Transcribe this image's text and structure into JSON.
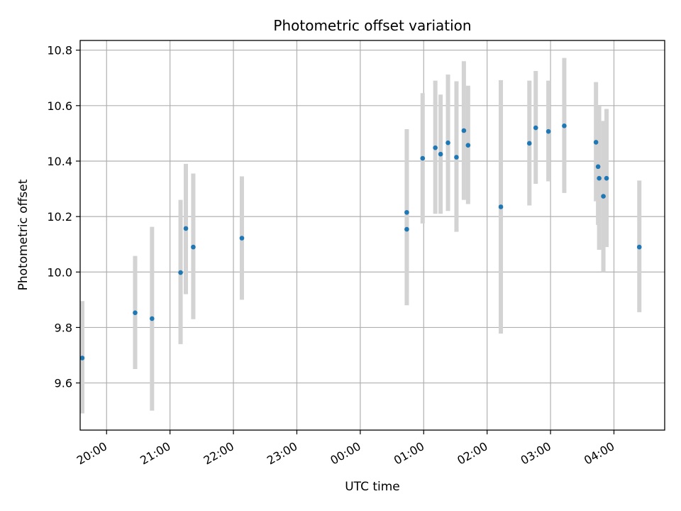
{
  "chart_data": {
    "type": "scatter",
    "title": "Photometric offset variation",
    "xlabel": "UTC time",
    "ylabel": "Photometric offset",
    "grid": true,
    "x_axis_kind": "time",
    "x_range": [
      "19:35",
      "04:48"
    ],
    "ylim": [
      9.43,
      10.835
    ],
    "x_ticks": [
      "20:00",
      "21:00",
      "22:00",
      "23:00",
      "00:00",
      "01:00",
      "02:00",
      "03:00",
      "04:00"
    ],
    "y_ticks": [
      9.6,
      9.8,
      10.0,
      10.2,
      10.4,
      10.6,
      10.8
    ],
    "y_tick_labels": [
      "9.6",
      "9.8",
      "10.0",
      "10.2",
      "10.4",
      "10.6",
      "10.8"
    ],
    "colors": {
      "point": "#1f77b4",
      "error_bar": "#d3d3d3",
      "grid": "#b0b0b0",
      "axes": "#000000"
    },
    "series": [
      {
        "points": [
          {
            "x": "19:37",
            "y": 9.69,
            "y_low": 9.49,
            "y_high": 9.895
          },
          {
            "x": "20:27",
            "y": 9.853,
            "y_low": 9.65,
            "y_high": 10.058
          },
          {
            "x": "20:43",
            "y": 9.832,
            "y_low": 9.5,
            "y_high": 10.163
          },
          {
            "x": "21:10",
            "y": 9.998,
            "y_low": 9.74,
            "y_high": 10.26
          },
          {
            "x": "21:15",
            "y": 10.157,
            "y_low": 9.92,
            "y_high": 10.39
          },
          {
            "x": "21:22",
            "y": 10.09,
            "y_low": 9.83,
            "y_high": 10.355
          },
          {
            "x": "22:08",
            "y": 10.122,
            "y_low": 9.9,
            "y_high": 10.345
          },
          {
            "x": "00:44",
            "y": 10.154,
            "y_low": 9.88,
            "y_high": 10.4
          },
          {
            "x": "00:44",
            "y": 10.215,
            "y_low": 9.92,
            "y_high": 10.515
          },
          {
            "x": "00:59",
            "y": 10.41,
            "y_low": 10.175,
            "y_high": 10.645
          },
          {
            "x": "01:11",
            "y": 10.448,
            "y_low": 10.21,
            "y_high": 10.69
          },
          {
            "x": "01:16",
            "y": 10.425,
            "y_low": 10.21,
            "y_high": 10.64
          },
          {
            "x": "01:23",
            "y": 10.466,
            "y_low": 10.22,
            "y_high": 10.712
          },
          {
            "x": "01:31",
            "y": 10.414,
            "y_low": 10.145,
            "y_high": 10.688
          },
          {
            "x": "01:38",
            "y": 10.51,
            "y_low": 10.26,
            "y_high": 10.76
          },
          {
            "x": "01:42",
            "y": 10.457,
            "y_low": 10.245,
            "y_high": 10.672
          },
          {
            "x": "02:13",
            "y": 10.235,
            "y_low": 9.778,
            "y_high": 10.692
          },
          {
            "x": "02:40",
            "y": 10.464,
            "y_low": 10.24,
            "y_high": 10.69
          },
          {
            "x": "02:46",
            "y": 10.52,
            "y_low": 10.318,
            "y_high": 10.725
          },
          {
            "x": "02:58",
            "y": 10.507,
            "y_low": 10.327,
            "y_high": 10.69
          },
          {
            "x": "03:13",
            "y": 10.527,
            "y_low": 10.285,
            "y_high": 10.772
          },
          {
            "x": "03:43",
            "y": 10.468,
            "y_low": 10.255,
            "y_high": 10.685
          },
          {
            "x": "03:45",
            "y": 10.38,
            "y_low": 10.17,
            "y_high": 10.595
          },
          {
            "x": "03:46",
            "y": 10.338,
            "y_low": 10.08,
            "y_high": 10.6
          },
          {
            "x": "03:50",
            "y": 10.273,
            "y_low": 10.0,
            "y_high": 10.545
          },
          {
            "x": "03:53",
            "y": 10.338,
            "y_low": 10.09,
            "y_high": 10.588
          },
          {
            "x": "04:24",
            "y": 10.09,
            "y_low": 9.855,
            "y_high": 10.33
          }
        ]
      }
    ]
  }
}
